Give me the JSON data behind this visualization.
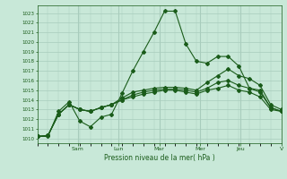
{
  "title": "Pression niveau de la mer( hPa )",
  "ylim": [
    1009.5,
    1023.8
  ],
  "yticks": [
    1010,
    1011,
    1012,
    1013,
    1014,
    1015,
    1016,
    1017,
    1018,
    1019,
    1020,
    1021,
    1022,
    1023
  ],
  "bg_color": "#c8e8d8",
  "line_color": "#1a5c1a",
  "grid_color": "#a8ccbc",
  "n_points": 24,
  "x_tick_positions_norm": [
    0.1667,
    0.333,
    0.5,
    0.667,
    0.833,
    1.0
  ],
  "x_tick_labels": [
    "Sam",
    "Lun",
    "Mar",
    "Mer",
    "Jeu",
    "V"
  ],
  "series1": [
    1010.2,
    1010.2,
    1012.8,
    1013.8,
    1011.8,
    1011.2,
    1012.2,
    1012.5,
    1014.7,
    1017.0,
    1019.0,
    1021.0,
    1023.2,
    1023.2,
    1019.8,
    1018.0,
    1017.8,
    1018.5,
    1018.5,
    1017.5,
    1015.2,
    1015.0,
    1013.2,
    1012.8
  ],
  "series2": [
    1010.2,
    1010.3,
    1012.5,
    1013.5,
    1013.0,
    1012.8,
    1013.2,
    1013.5,
    1014.2,
    1014.8,
    1015.0,
    1015.2,
    1015.3,
    1015.3,
    1015.2,
    1015.0,
    1015.8,
    1016.5,
    1017.2,
    1016.5,
    1016.2,
    1015.5,
    1013.5,
    1013.0
  ],
  "series3": [
    1010.2,
    1010.3,
    1012.5,
    1013.5,
    1013.0,
    1012.8,
    1013.2,
    1013.5,
    1014.0,
    1014.5,
    1014.8,
    1015.0,
    1015.1,
    1015.1,
    1015.0,
    1014.8,
    1015.2,
    1015.8,
    1016.0,
    1015.5,
    1015.2,
    1014.8,
    1013.2,
    1012.8
  ],
  "series4": [
    1010.2,
    1010.3,
    1012.5,
    1013.5,
    1013.0,
    1012.8,
    1013.2,
    1013.5,
    1014.0,
    1014.3,
    1014.6,
    1014.8,
    1015.0,
    1015.0,
    1014.8,
    1014.6,
    1015.0,
    1015.2,
    1015.5,
    1015.0,
    1014.8,
    1014.3,
    1013.0,
    1012.8
  ]
}
